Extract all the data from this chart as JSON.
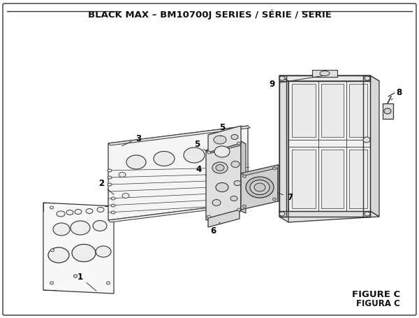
{
  "title": "BLACK MAX – BM10700J SERIES / SÉRIE / SERIE",
  "figure_label": "FIGURE C",
  "figura_label": "FIGURA C",
  "bg_color": "#ffffff",
  "line_color": "#333333",
  "title_fontsize": 9.5,
  "label_fontsize": 8.5
}
